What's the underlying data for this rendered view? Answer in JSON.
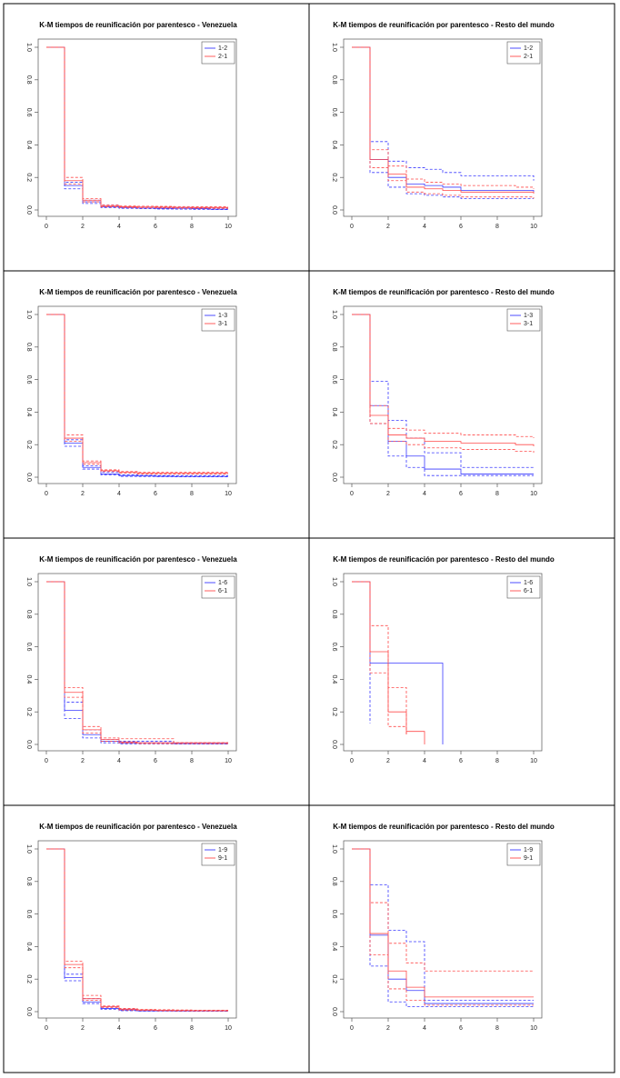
{
  "chart_data": [
    {
      "type": "step",
      "title": "K-M tiempos de reunificación por parentesco - Venezuela",
      "x": [
        0,
        1,
        2,
        3,
        4,
        5,
        6,
        7,
        8,
        9,
        10
      ],
      "xlim": [
        0,
        10
      ],
      "xticks": [
        0,
        2,
        4,
        6,
        8,
        10
      ],
      "ylim": [
        0,
        1
      ],
      "yticks": [
        {
          "value": 0,
          "label": "0.0"
        },
        {
          "value": 0.2,
          "label": "0.2"
        },
        {
          "value": 0.4,
          "label": "0.4"
        },
        {
          "value": 0.6,
          "label": "0.6"
        },
        {
          "value": 0.8,
          "label": "0.8"
        },
        {
          "value": 1,
          "label": "1.0"
        }
      ],
      "legend": "top-right",
      "series": [
        {
          "name": "1-2",
          "color": "#3a3aff",
          "values": [
            1,
            0.15,
            0.05,
            0.02,
            0.015,
            0.012,
            0.01,
            0.01,
            0.008,
            0.005,
            0.005
          ],
          "lower": [
            1,
            0.13,
            0.04,
            0.015,
            0.01,
            0.008,
            0.006,
            0.005,
            0.003,
            0.002,
            0.002
          ],
          "upper": [
            1,
            0.17,
            0.06,
            0.03,
            0.02,
            0.018,
            0.015,
            0.015,
            0.013,
            0.01,
            0.01
          ]
        },
        {
          "name": "2-1",
          "color": "#ff4a4a",
          "values": [
            1,
            0.18,
            0.06,
            0.025,
            0.02,
            0.018,
            0.017,
            0.016,
            0.015,
            0.015,
            0.015
          ],
          "lower": [
            1,
            0.16,
            0.05,
            0.02,
            0.015,
            0.013,
            0.012,
            0.011,
            0.01,
            0.01,
            0.01
          ],
          "upper": [
            1,
            0.2,
            0.07,
            0.03,
            0.025,
            0.023,
            0.022,
            0.021,
            0.02,
            0.02,
            0.02
          ]
        }
      ]
    },
    {
      "type": "step",
      "title": "K-M tiempos de reunificación por parentesco - Resto del mundo",
      "x": [
        0,
        1,
        2,
        3,
        4,
        5,
        6,
        7,
        8,
        9,
        10
      ],
      "xlim": [
        0,
        10
      ],
      "xticks": [
        0,
        2,
        4,
        6,
        8,
        10
      ],
      "ylim": [
        0,
        1
      ],
      "yticks": [
        {
          "value": 0,
          "label": "0.0"
        },
        {
          "value": 0.2,
          "label": "0.2"
        },
        {
          "value": 0.4,
          "label": "0.4"
        },
        {
          "value": 0.6,
          "label": "0.6"
        },
        {
          "value": 0.8,
          "label": "0.8"
        },
        {
          "value": 1,
          "label": "1.0"
        }
      ],
      "legend": "top-right",
      "series": [
        {
          "name": "1-2",
          "color": "#3a3aff",
          "values": [
            1,
            0.31,
            0.2,
            0.16,
            0.15,
            0.14,
            0.12,
            0.12,
            0.12,
            0.12,
            0.11
          ],
          "lower": [
            1,
            0.23,
            0.14,
            0.1,
            0.09,
            0.08,
            0.07,
            0.07,
            0.07,
            0.07,
            0.07
          ],
          "upper": [
            1,
            0.42,
            0.3,
            0.26,
            0.25,
            0.23,
            0.21,
            0.21,
            0.21,
            0.21,
            0.18
          ]
        },
        {
          "name": "2-1",
          "color": "#ff4a4a",
          "values": [
            1,
            0.31,
            0.22,
            0.14,
            0.13,
            0.12,
            0.11,
            0.11,
            0.11,
            0.11,
            0.1
          ],
          "lower": [
            1,
            0.26,
            0.18,
            0.11,
            0.1,
            0.09,
            0.08,
            0.08,
            0.08,
            0.08,
            0.07
          ],
          "upper": [
            1,
            0.37,
            0.27,
            0.19,
            0.17,
            0.16,
            0.15,
            0.15,
            0.15,
            0.14,
            0.13
          ]
        }
      ]
    },
    {
      "type": "step",
      "title": "K-M tiempos de reunificación por parentesco - Venezuela",
      "x": [
        0,
        1,
        2,
        3,
        4,
        5,
        6,
        7,
        8,
        9,
        10
      ],
      "xlim": [
        0,
        10
      ],
      "xticks": [
        0,
        2,
        4,
        6,
        8,
        10
      ],
      "ylim": [
        0,
        1
      ],
      "yticks": [
        {
          "value": 0,
          "label": "0.0"
        },
        {
          "value": 0.2,
          "label": "0.2"
        },
        {
          "value": 0.4,
          "label": "0.4"
        },
        {
          "value": 0.6,
          "label": "0.6"
        },
        {
          "value": 0.8,
          "label": "0.8"
        },
        {
          "value": 1,
          "label": "1.0"
        }
      ],
      "legend": "top-right",
      "series": [
        {
          "name": "1-3",
          "color": "#3a3aff",
          "values": [
            1,
            0.21,
            0.06,
            0.02,
            0.01,
            0.008,
            0.006,
            0.005,
            0.005,
            0.005,
            0.005
          ],
          "lower": [
            1,
            0.19,
            0.05,
            0.015,
            0.005,
            0.004,
            0.003,
            0.002,
            0.002,
            0.002,
            0.002
          ],
          "upper": [
            1,
            0.23,
            0.07,
            0.03,
            0.015,
            0.012,
            0.01,
            0.01,
            0.01,
            0.01,
            0.01
          ]
        },
        {
          "name": "3-1",
          "color": "#ff4a4a",
          "values": [
            1,
            0.24,
            0.09,
            0.04,
            0.03,
            0.025,
            0.025,
            0.025,
            0.025,
            0.025,
            0.025
          ],
          "lower": [
            1,
            0.22,
            0.08,
            0.035,
            0.025,
            0.02,
            0.02,
            0.02,
            0.02,
            0.02,
            0.02
          ],
          "upper": [
            1,
            0.26,
            0.1,
            0.045,
            0.035,
            0.03,
            0.03,
            0.03,
            0.03,
            0.03,
            0.03
          ]
        }
      ]
    },
    {
      "type": "step",
      "title": "K-M tiempos de reunificación por parentesco - Resto del mundo",
      "x": [
        0,
        1,
        2,
        3,
        4,
        5,
        6,
        7,
        8,
        9,
        10
      ],
      "xlim": [
        0,
        10
      ],
      "xticks": [
        0,
        2,
        4,
        6,
        8,
        10
      ],
      "ylim": [
        0,
        1
      ],
      "yticks": [
        {
          "value": 0,
          "label": "0.0"
        },
        {
          "value": 0.2,
          "label": "0.2"
        },
        {
          "value": 0.4,
          "label": "0.4"
        },
        {
          "value": 0.6,
          "label": "0.6"
        },
        {
          "value": 0.8,
          "label": "0.8"
        },
        {
          "value": 1,
          "label": "1.0"
        }
      ],
      "legend": "top-right",
      "series": [
        {
          "name": "1-3",
          "color": "#3a3aff",
          "values": [
            1,
            0.44,
            0.22,
            0.13,
            0.05,
            0.05,
            0.02,
            0.02,
            0.02,
            0.02,
            0.02
          ],
          "lower": [
            1,
            0.33,
            0.13,
            0.06,
            0.01,
            0.01,
            0.01,
            0.01,
            0.01,
            0.01,
            0.01
          ],
          "upper": [
            1,
            0.59,
            0.35,
            0.24,
            0.15,
            0.15,
            0.06,
            0.06,
            0.06,
            0.06,
            0.06
          ]
        },
        {
          "name": "3-1",
          "color": "#ff4a4a",
          "values": [
            1,
            0.38,
            0.26,
            0.24,
            0.22,
            0.22,
            0.21,
            0.21,
            0.21,
            0.2,
            0.19
          ],
          "lower": [
            1,
            0.33,
            0.22,
            0.2,
            0.18,
            0.18,
            0.17,
            0.17,
            0.17,
            0.16,
            0.15
          ],
          "upper": [
            1,
            0.44,
            0.3,
            0.29,
            0.27,
            0.27,
            0.26,
            0.26,
            0.26,
            0.25,
            0.24
          ]
        }
      ]
    },
    {
      "type": "step",
      "title": "K-M tiempos de reunificación por parentesco - Venezuela",
      "x": [
        0,
        1,
        2,
        3,
        4,
        5,
        6,
        7,
        8,
        9,
        10
      ],
      "xlim": [
        0,
        10
      ],
      "xticks": [
        0,
        2,
        4,
        6,
        8,
        10
      ],
      "ylim": [
        0,
        1
      ],
      "yticks": [
        {
          "value": 0,
          "label": "0.0"
        },
        {
          "value": 0.2,
          "label": "0.2"
        },
        {
          "value": 0.4,
          "label": "0.4"
        },
        {
          "value": 0.6,
          "label": "0.6"
        },
        {
          "value": 0.8,
          "label": "0.8"
        },
        {
          "value": 1,
          "label": "1.0"
        }
      ],
      "legend": "top-right",
      "series": [
        {
          "name": "1-6",
          "color": "#3a3aff",
          "values": [
            1,
            0.21,
            0.06,
            0.02,
            0.01,
            0.01,
            0.01,
            0.005,
            0.005,
            0.005,
            0.005
          ],
          "lower": [
            1,
            0.16,
            0.04,
            0.01,
            0.003,
            0.003,
            0.003,
            0.002,
            0.002,
            0.002,
            0.002
          ],
          "upper": [
            1,
            0.26,
            0.09,
            0.03,
            0.02,
            0.02,
            0.02,
            0.01,
            0.01,
            0.01,
            0.01
          ]
        },
        {
          "name": "6-1",
          "color": "#ff4a4a",
          "values": [
            1,
            0.32,
            0.09,
            0.03,
            0.015,
            0.01,
            0.01,
            0.01,
            0.01,
            0.01,
            0.01
          ],
          "lower": [
            1,
            0.29,
            0.07,
            0.02,
            0.008,
            0.005,
            0.005,
            0.005,
            0.005,
            0.005,
            0.005
          ],
          "upper": [
            1,
            0.35,
            0.11,
            0.04,
            0.035,
            0.035,
            0.035,
            0.01,
            0.01,
            0.01,
            0.01
          ]
        }
      ]
    },
    {
      "type": "step",
      "title": "K-M tiempos de reunificación por parentesco - Resto del mundo",
      "x": [
        0,
        1,
        2,
        3,
        4,
        5,
        6,
        7,
        8,
        9,
        10
      ],
      "xlim": [
        0,
        10
      ],
      "xticks": [
        0,
        2,
        4,
        6,
        8,
        10
      ],
      "ylim": [
        0,
        1
      ],
      "yticks": [
        {
          "value": 0,
          "label": "0.0"
        },
        {
          "value": 0.2,
          "label": "0.2"
        },
        {
          "value": 0.4,
          "label": "0.4"
        },
        {
          "value": 0.6,
          "label": "0.6"
        },
        {
          "value": 0.8,
          "label": "0.8"
        },
        {
          "value": 1,
          "label": "1.0"
        }
      ],
      "legend": "top-right",
      "series": [
        {
          "name": "1-6",
          "color": "#3a3aff",
          "values": [
            1,
            0.5,
            0.5,
            0.5,
            0.5,
            0,
            null,
            null,
            null,
            null,
            null
          ],
          "lower": [
            1,
            0.13,
            null,
            null,
            null,
            null,
            null,
            null,
            null,
            null,
            null
          ]
        },
        {
          "name": "6-1",
          "color": "#ff4a4a",
          "values": [
            1,
            0.57,
            0.2,
            0.08,
            0,
            null,
            null,
            null,
            null,
            null,
            null
          ],
          "lower": [
            1,
            0.44,
            0.11,
            0.05,
            null,
            null,
            null,
            null,
            null,
            null,
            null
          ],
          "upper": [
            1,
            0.73,
            0.35,
            0.05,
            null,
            null,
            null,
            null,
            null,
            null,
            null
          ]
        }
      ]
    },
    {
      "type": "step",
      "title": "K-M tiempos de reunificación por parentesco - Venezuela",
      "x": [
        0,
        1,
        2,
        3,
        4,
        5,
        6,
        7,
        8,
        9,
        10
      ],
      "xlim": [
        0,
        10
      ],
      "xticks": [
        0,
        2,
        4,
        6,
        8,
        10
      ],
      "ylim": [
        0,
        1
      ],
      "yticks": [
        {
          "value": 0,
          "label": "0.0"
        },
        {
          "value": 0.2,
          "label": "0.2"
        },
        {
          "value": 0.4,
          "label": "0.4"
        },
        {
          "value": 0.6,
          "label": "0.6"
        },
        {
          "value": 0.8,
          "label": "0.8"
        },
        {
          "value": 1,
          "label": "1.0"
        }
      ],
      "legend": "top-right",
      "series": [
        {
          "name": "1-9",
          "color": "#3a3aff",
          "values": [
            1,
            0.21,
            0.06,
            0.02,
            0.01,
            0.005,
            0.005,
            0.004,
            0.004,
            0.004,
            0.004
          ],
          "lower": [
            1,
            0.19,
            0.05,
            0.015,
            0.006,
            0.003,
            0.003,
            0.002,
            0.002,
            0.002,
            0.002
          ],
          "upper": [
            1,
            0.23,
            0.08,
            0.03,
            0.015,
            0.008,
            0.008,
            0.007,
            0.007,
            0.007,
            0.007
          ]
        },
        {
          "name": "9-1",
          "color": "#ff4a4a",
          "values": [
            1,
            0.29,
            0.08,
            0.03,
            0.015,
            0.01,
            0.008,
            0.007,
            0.006,
            0.006,
            0.006
          ],
          "lower": [
            1,
            0.27,
            0.07,
            0.025,
            0.01,
            0.007,
            0.005,
            0.004,
            0.004,
            0.004,
            0.004
          ],
          "upper": [
            1,
            0.31,
            0.1,
            0.035,
            0.02,
            0.014,
            0.012,
            0.01,
            0.009,
            0.009,
            0.009
          ]
        }
      ]
    },
    {
      "type": "step",
      "title": "K-M tiempos de reunificación por parentesco - Resto del mundo",
      "x": [
        0,
        1,
        2,
        3,
        4,
        5,
        6,
        7,
        8,
        9,
        10
      ],
      "xlim": [
        0,
        10
      ],
      "xticks": [
        0,
        2,
        4,
        6,
        8,
        10
      ],
      "ylim": [
        0,
        1
      ],
      "yticks": [
        {
          "value": 0,
          "label": "0.0"
        },
        {
          "value": 0.2,
          "label": "0.2"
        },
        {
          "value": 0.4,
          "label": "0.4"
        },
        {
          "value": 0.6,
          "label": "0.6"
        },
        {
          "value": 0.8,
          "label": "0.8"
        },
        {
          "value": 1,
          "label": "1.0"
        }
      ],
      "legend": "top-right",
      "series": [
        {
          "name": "1-9",
          "color": "#3a3aff",
          "values": [
            1,
            0.47,
            0.2,
            0.13,
            0.05,
            0.05,
            0.05,
            0.05,
            0.05,
            0.05,
            0.05
          ],
          "lower": [
            1,
            0.28,
            0.06,
            0.03,
            0.03,
            0.03,
            0.03,
            0.03,
            0.03,
            0.03,
            0.03
          ],
          "upper": [
            1,
            0.78,
            0.5,
            0.43,
            0.07,
            0.07,
            0.07,
            0.07,
            0.07,
            0.07,
            0.07
          ]
        },
        {
          "name": "9-1",
          "color": "#ff4a4a",
          "values": [
            1,
            0.48,
            0.25,
            0.15,
            0.09,
            0.09,
            0.09,
            0.09,
            0.09,
            0.09,
            0.09
          ],
          "lower": [
            1,
            0.35,
            0.14,
            0.07,
            0.04,
            0.04,
            0.04,
            0.04,
            0.04,
            0.04,
            0.04
          ],
          "upper": [
            1,
            0.67,
            0.42,
            0.3,
            0.25,
            0.25,
            0.25,
            0.25,
            0.25,
            0.25,
            0.25
          ]
        }
      ]
    }
  ]
}
